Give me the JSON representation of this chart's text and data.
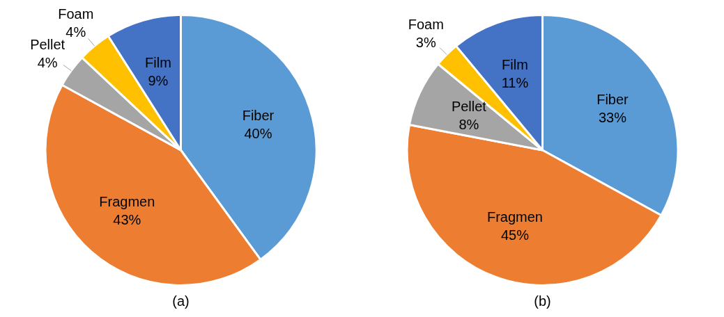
{
  "chart_data": [
    {
      "type": "pie",
      "title": "(a)",
      "categories": [
        "Fiber",
        "Fragmen",
        "Pellet",
        "Foam",
        "Film"
      ],
      "values": [
        40,
        43,
        4,
        4,
        9
      ],
      "value_labels": [
        "40%",
        "43%",
        "4%",
        "4%",
        "9%"
      ],
      "colors": [
        "#5b9bd5",
        "#ed7d31",
        "#a5a5a5",
        "#ffc000",
        "#4472c4"
      ],
      "legend": false
    },
    {
      "type": "pie",
      "title": "(b)",
      "categories": [
        "Fiber",
        "Fragmen",
        "Pellet",
        "Foam",
        "Film"
      ],
      "values": [
        33,
        45,
        8,
        3,
        11
      ],
      "value_labels": [
        "33%",
        "45%",
        "8%",
        "3%",
        "11%"
      ],
      "colors": [
        "#5b9bd5",
        "#ed7d31",
        "#a5a5a5",
        "#ffc000",
        "#4472c4"
      ],
      "legend": false
    }
  ]
}
